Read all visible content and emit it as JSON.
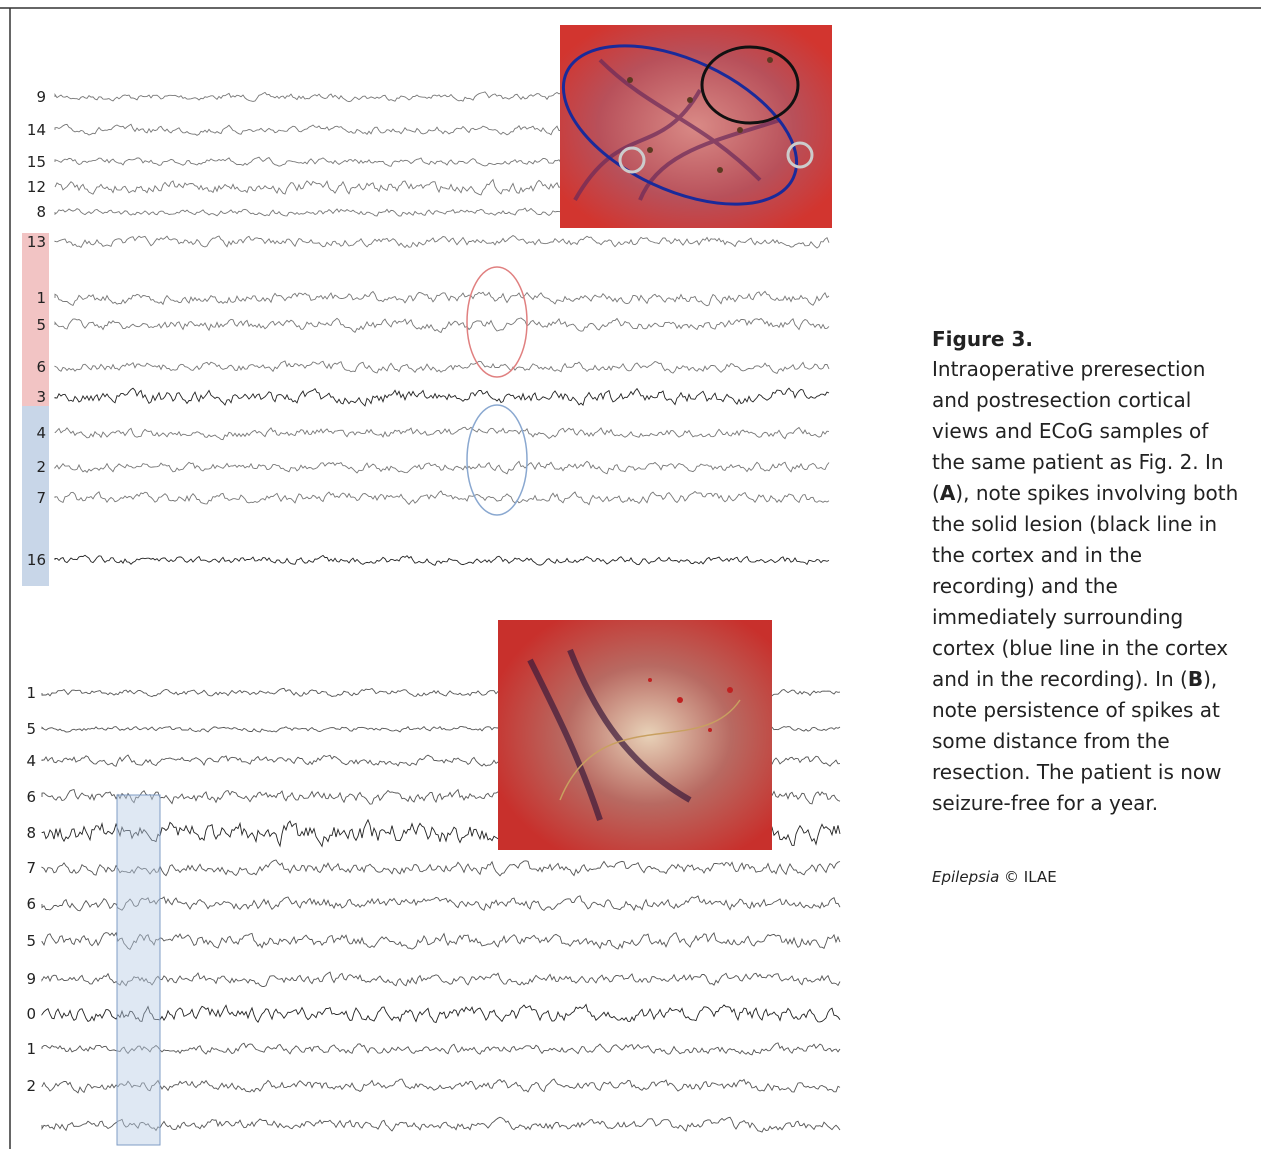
{
  "panel_a": {
    "channels": [
      "9",
      "14",
      "15",
      "12",
      "8",
      "13",
      "1",
      "5",
      "6",
      "3",
      "4",
      "2",
      "7",
      "16"
    ]
  },
  "panel_b": {
    "channels": [
      "1",
      "5",
      "4",
      "6",
      "8",
      "7",
      "6",
      "5",
      "9",
      "0",
      "1",
      "2"
    ]
  },
  "caption": {
    "title": "Figure 3.",
    "lines": [
      [
        "Intraoperative preresection"
      ],
      [
        "and postresection cortical"
      ],
      [
        "views and ECoG samples of"
      ],
      [
        "the same patient as Fig.  2. In"
      ],
      [
        "(",
        "A",
        "), note spikes involving both"
      ],
      [
        "the solid lesion (black line in"
      ],
      [
        "the cortex and in the"
      ],
      [
        "recording) and the"
      ],
      [
        "immediately surrounding"
      ],
      [
        "cortex (blue line in the cortex"
      ],
      [
        "and in the recording). In (",
        "B",
        "),"
      ],
      [
        "note persistence of spikes at"
      ],
      [
        "some distance from the"
      ],
      [
        "resection. The patient is now"
      ],
      [
        "seizure-free for a year."
      ]
    ],
    "journal": "Epilepsia",
    "credit": " © ILAE"
  }
}
